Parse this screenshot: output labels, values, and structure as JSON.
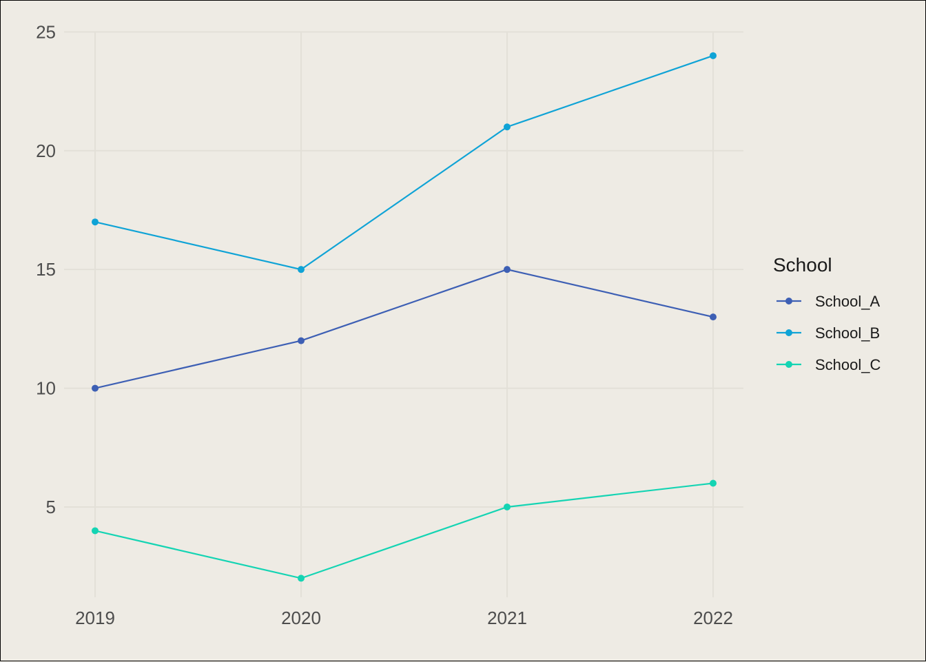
{
  "chart_data": {
    "type": "line",
    "title": "",
    "xlabel": "",
    "ylabel": "",
    "x": [
      "2019",
      "2020",
      "2021",
      "2022"
    ],
    "ylim": [
      1.2,
      25.3
    ],
    "yticks": [
      5,
      10,
      15,
      20,
      25
    ],
    "grid": true,
    "legend": {
      "title": "School",
      "placement": "right"
    },
    "series": [
      {
        "name": "School_A",
        "values": [
          10,
          12,
          15,
          13
        ],
        "color": "#3d5fb4"
      },
      {
        "name": "School_B",
        "values": [
          17,
          15,
          21,
          24
        ],
        "color": "#0fa3d6"
      },
      {
        "name": "School_C",
        "values": [
          4,
          2,
          5,
          6
        ],
        "color": "#14d4b3"
      }
    ]
  }
}
